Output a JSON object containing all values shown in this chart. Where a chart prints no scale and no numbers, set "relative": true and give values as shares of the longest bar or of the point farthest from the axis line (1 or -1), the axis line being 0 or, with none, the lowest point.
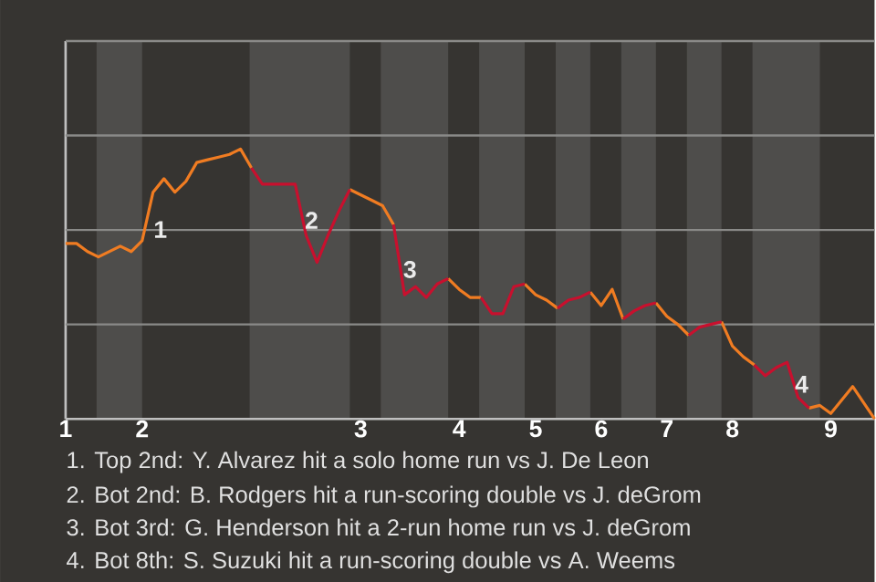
{
  "chart_data": {
    "type": "line",
    "relative": true,
    "categories": [
      "1",
      null,
      null,
      null,
      null,
      null,
      null,
      "2",
      null,
      null,
      null,
      null,
      null,
      null,
      null,
      null,
      null,
      null,
      null,
      null,
      null,
      null,
      null,
      null,
      null,
      null,
      null,
      "3",
      null,
      null,
      null,
      null,
      null,
      null,
      null,
      null,
      "4",
      null,
      null,
      null,
      null,
      null,
      null,
      "5",
      null,
      null,
      null,
      null,
      null,
      "6",
      null,
      null,
      null,
      null,
      null,
      "7",
      null,
      null,
      null,
      null,
      null,
      "8",
      null,
      null,
      null,
      null,
      null,
      null,
      null,
      null,
      "9",
      null,
      null,
      null,
      null
    ],
    "series": [
      {
        "color": "#f07c22",
        "values": [
          0.65,
          0.65,
          0.62,
          0.6,
          0.62,
          0.64,
          0.62,
          0.66,
          0.84,
          0.89,
          0.84,
          0.88,
          0.95,
          0.96,
          0.97,
          0.98,
          1.0,
          0.93,
          null,
          null,
          null,
          null,
          null,
          null,
          null,
          null,
          0.85,
          0.83,
          0.81,
          0.79,
          0.72,
          null,
          null,
          null,
          null,
          0.52,
          0.48,
          0.45,
          0.45,
          null,
          null,
          null,
          0.5,
          0.46,
          0.44,
          0.41,
          null,
          null,
          0.47,
          0.42,
          0.48,
          0.37,
          null,
          null,
          0.43,
          0.38,
          0.35,
          0.31,
          null,
          null,
          0.36,
          0.27,
          0.23,
          0.2,
          null,
          null,
          null,
          null,
          0.04,
          0.05,
          0.02,
          0.07,
          0.12,
          0.06,
          0.0
        ]
      },
      {
        "color": "#c8102e",
        "values": [
          null,
          null,
          null,
          null,
          null,
          null,
          null,
          null,
          null,
          null,
          null,
          null,
          null,
          null,
          null,
          null,
          null,
          0.93,
          0.87,
          0.87,
          0.87,
          0.87,
          0.68,
          0.58,
          0.68,
          0.77,
          0.85,
          null,
          null,
          null,
          0.72,
          0.46,
          0.49,
          0.45,
          0.5,
          0.52,
          null,
          null,
          0.45,
          0.39,
          0.39,
          0.49,
          0.5,
          null,
          null,
          0.41,
          0.44,
          0.45,
          0.47,
          null,
          null,
          0.37,
          0.4,
          0.42,
          0.43,
          null,
          null,
          0.31,
          0.34,
          0.35,
          0.36,
          null,
          null,
          0.2,
          0.16,
          0.19,
          0.21,
          0.08,
          0.04,
          null,
          null,
          null,
          null,
          null,
          null
        ]
      }
    ],
    "ref_lines": [
      {
        "axis": "y",
        "value": 0.35,
        "color": "#8a8a88"
      },
      {
        "axis": "y",
        "value": 0.7,
        "color": "#8a8a88"
      },
      {
        "axis": "y",
        "value": 1.05,
        "color": "#8a8a88"
      },
      {
        "axis": "y",
        "value": 1.4,
        "color": "#8a8a88"
      }
    ],
    "annotations": [
      "1",
      "2",
      "3",
      "4",
      "1. Top 2nd: Y. Alvarez hit a solo home run vs J. De Leon",
      "2. Bot 2nd: B. Rodgers hit a run-scoring double vs J. deGrom",
      "3. Bot 3rd: G. Henderson hit a 2-run home run vs J. deGrom",
      "4. Bot 8th: S. Suzuki hit a run-scoring double vs A. Weems"
    ]
  }
}
